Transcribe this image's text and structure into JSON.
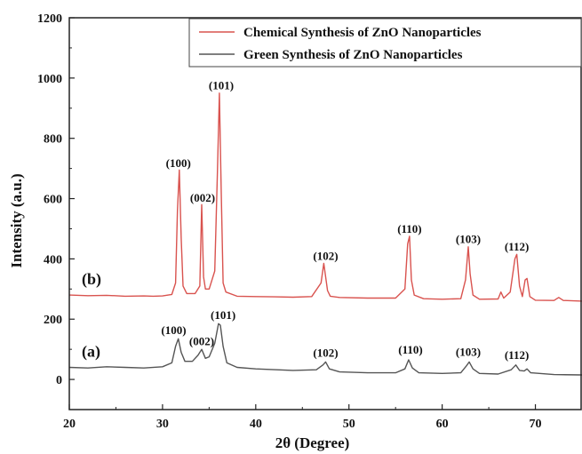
{
  "chart_data": {
    "type": "line",
    "title": "",
    "xlabel": "2θ (Degree)",
    "ylabel": "Intensity (a.u.)",
    "xlim": [
      20,
      75
    ],
    "ylim": [
      -100,
      1200
    ],
    "xticks": [
      "20",
      "30",
      "40",
      "50",
      "60",
      "70"
    ],
    "yticks": [
      "0",
      "200",
      "400",
      "600",
      "800",
      "1000",
      "1200"
    ],
    "legend_position": "top-right",
    "series": [
      {
        "name": "Chemical Synthesis of ZnO Nanoparticles",
        "curve_label": "(b)",
        "color": "#d9534f",
        "x": [
          20,
          22,
          24,
          26,
          28,
          29,
          30,
          31,
          31.4,
          31.6,
          31.8,
          32.0,
          32.2,
          32.6,
          33.5,
          34.0,
          34.2,
          34.4,
          34.6,
          35.0,
          35.6,
          35.9,
          36.1,
          36.3,
          36.5,
          36.8,
          38,
          40,
          42,
          44,
          46,
          47.0,
          47.3,
          47.5,
          47.7,
          48.0,
          49,
          52,
          55,
          56.0,
          56.3,
          56.5,
          56.7,
          57.0,
          58,
          60,
          62,
          62.5,
          62.8,
          63.0,
          63.3,
          64,
          66,
          66.3,
          66.6,
          67.3,
          67.8,
          68.0,
          68.3,
          68.6,
          68.9,
          69.1,
          69.4,
          70,
          72,
          72.5,
          73,
          75
        ],
        "values": [
          280,
          278,
          279,
          276,
          277,
          276,
          277,
          282,
          320,
          560,
          695,
          470,
          310,
          285,
          285,
          310,
          580,
          340,
          300,
          300,
          360,
          700,
          950,
          620,
          320,
          290,
          276,
          275,
          274,
          273,
          275,
          320,
          385,
          340,
          295,
          276,
          272,
          270,
          270,
          300,
          450,
          475,
          330,
          280,
          268,
          266,
          268,
          330,
          440,
          350,
          280,
          266,
          267,
          290,
          270,
          290,
          400,
          415,
          310,
          275,
          330,
          335,
          275,
          263,
          262,
          272,
          262,
          260
        ]
      },
      {
        "name": "Green Synthesis of ZnO Nanoparticles",
        "curve_label": "(a)",
        "color": "#555555",
        "x": [
          20,
          22,
          24,
          26,
          28,
          30,
          31,
          31.4,
          31.7,
          32.0,
          32.4,
          33.2,
          33.8,
          34.2,
          34.6,
          35.0,
          35.6,
          36.0,
          36.2,
          36.5,
          36.9,
          38,
          40,
          44,
          46.5,
          47.2,
          47.5,
          47.9,
          49,
          52,
          55,
          56.0,
          56.4,
          56.8,
          57.5,
          60,
          62,
          62.6,
          62.9,
          63.3,
          64,
          66,
          67.4,
          67.9,
          68.3,
          68.8,
          69.1,
          69.5,
          72,
          75
        ],
        "values": [
          40,
          38,
          42,
          40,
          38,
          42,
          55,
          110,
          135,
          90,
          60,
          60,
          80,
          100,
          70,
          75,
          120,
          185,
          180,
          110,
          55,
          40,
          35,
          30,
          32,
          48,
          58,
          35,
          25,
          22,
          22,
          35,
          65,
          38,
          22,
          20,
          22,
          45,
          58,
          35,
          20,
          18,
          32,
          48,
          30,
          28,
          35,
          22,
          16,
          15
        ]
      }
    ],
    "annotations": [
      {
        "text": "(100)",
        "x": 31.7,
        "y": 705,
        "series": 0
      },
      {
        "text": "(002)",
        "x": 34.3,
        "y": 590,
        "series": 0
      },
      {
        "text": "(101)",
        "x": 36.3,
        "y": 962,
        "series": 0
      },
      {
        "text": "(102)",
        "x": 47.5,
        "y": 397,
        "series": 0
      },
      {
        "text": "(110)",
        "x": 56.5,
        "y": 487,
        "series": 0
      },
      {
        "text": "(103)",
        "x": 62.8,
        "y": 452,
        "series": 0
      },
      {
        "text": "(112)",
        "x": 68.0,
        "y": 427,
        "series": 0
      },
      {
        "text": "(100)",
        "x": 31.2,
        "y": 150,
        "series": 1
      },
      {
        "text": "(002)",
        "x": 34.2,
        "y": 113,
        "series": 1
      },
      {
        "text": "(101)",
        "x": 36.5,
        "y": 200,
        "series": 1
      },
      {
        "text": "(102)",
        "x": 47.5,
        "y": 76,
        "series": 1
      },
      {
        "text": "(110)",
        "x": 56.6,
        "y": 86,
        "series": 1
      },
      {
        "text": "(103)",
        "x": 62.8,
        "y": 78,
        "series": 1
      },
      {
        "text": "(112)",
        "x": 68.0,
        "y": 68,
        "series": 1
      }
    ]
  }
}
